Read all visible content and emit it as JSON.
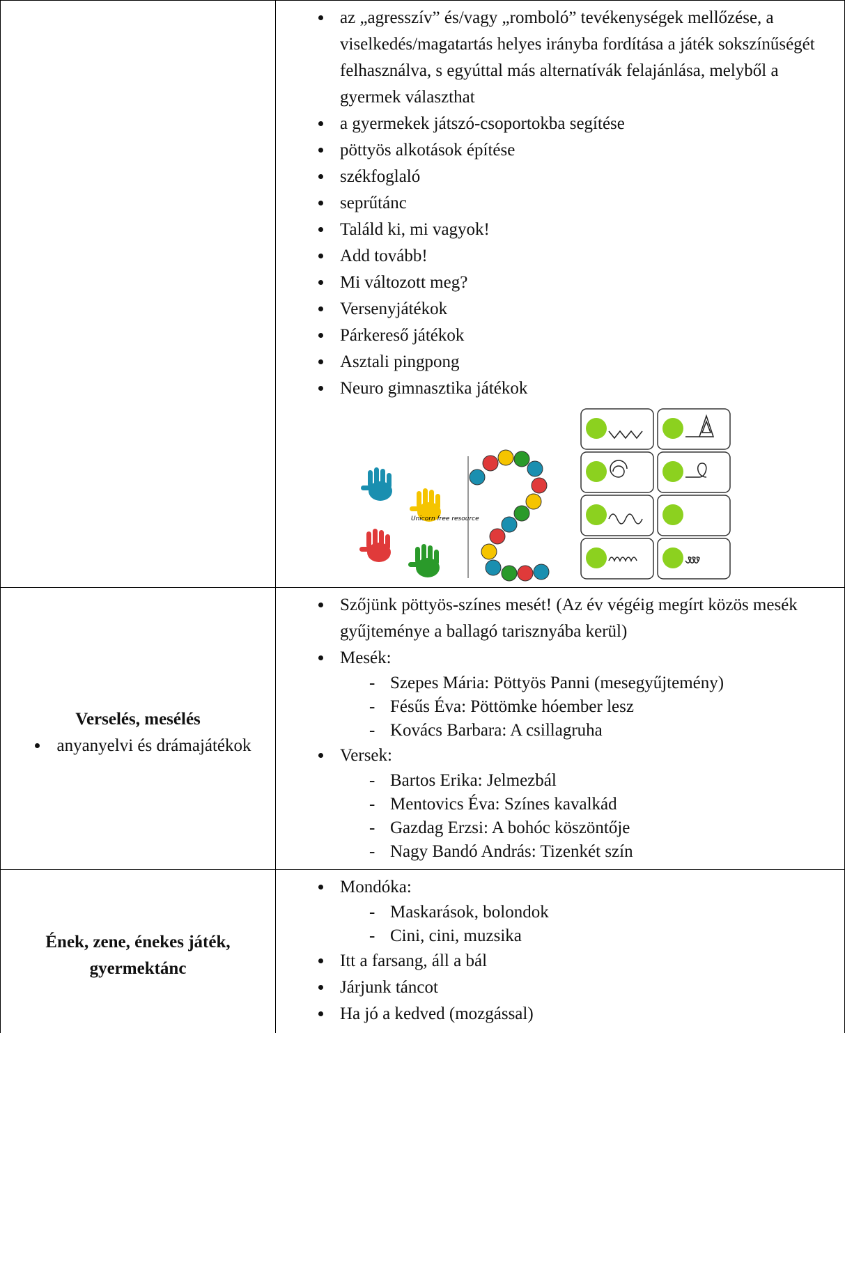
{
  "table": {
    "rows": [
      {
        "items": [
          {
            "text": "az „agresszív” és/vagy „romboló” tevékenységek mellőzése, a viselkedés/magatartás helyes irányba fordítása a játék sokszínűségét felhasználva, s egyúttal más alternatívák felajánlása, melyből a gyermek választhat"
          },
          {
            "text": "a gyermekek játszó-csoportokba segítése"
          },
          {
            "text": "pöttyös alkotások építése"
          },
          {
            "text": "székfoglaló"
          },
          {
            "text": "seprűtánc"
          },
          {
            "text": "Találd ki, mi vagyok!"
          },
          {
            "text": "Add tovább!"
          },
          {
            "text": "Mi változott meg?"
          },
          {
            "text": "Versenyjátékok"
          },
          {
            "text": "Párkereső játékok"
          },
          {
            "text": "Asztali pingpong"
          },
          {
            "text": "Neuro gimnasztika játékok"
          }
        ],
        "image_caption": "Unicorn free resource"
      },
      {
        "heading": "Verselés, mesélés",
        "subitems": [
          "anyanyelvi és drámajátékok"
        ],
        "items": [
          {
            "text": "Szőjünk pöttyös-színes mesét! (Az év végéig megírt közös mesék gyűjteménye a ballagó tarisznyába kerül)"
          },
          {
            "text": "Mesék:",
            "sub": [
              "Szepes Mária: Pöttyös Panni (mesegyűjtemény)",
              "Fésűs Éva: Pöttömke hóember lesz",
              "Kovács Barbara: A csillagruha"
            ]
          },
          {
            "text": "Versek:",
            "sub": [
              "Bartos Erika: Jelmezbál",
              "Mentovics Éva: Színes kavalkád",
              "Gazdag Erzsi: A bohóc köszöntője",
              "Nagy Bandó András: Tizenkét szín"
            ]
          }
        ]
      },
      {
        "heading": "Ének, zene, énekes játék, gyermektánc",
        "items": [
          {
            "text": "Mondóka:",
            "sub": [
              "Maskarások, bolondok",
              "Cini, cini, muzsika"
            ]
          },
          {
            "text": "Itt a farsang, áll a bál"
          },
          {
            "text": "Járjunk táncot"
          },
          {
            "text": "Ha jó a kedved (mozgással)"
          }
        ]
      }
    ]
  }
}
